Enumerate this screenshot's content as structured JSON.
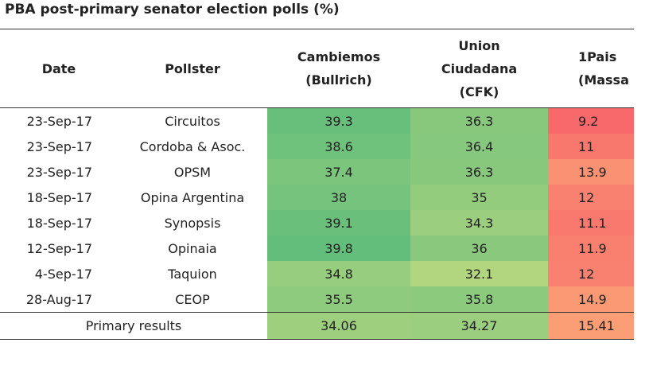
{
  "chart_data": {
    "type": "table",
    "title": "PBA post-primary senator election polls (%)",
    "columns": {
      "date": "Date",
      "pollster": "Pollster",
      "cambiemos": [
        "Cambiemos",
        "(Bullrich)"
      ],
      "union": [
        "Union",
        "Ciudadana",
        "(CFK)"
      ],
      "pais": [
        "1Pais",
        "(Massa"
      ]
    },
    "rows": [
      {
        "date": "23-Sep-17",
        "pollster": "Circuitos",
        "cambiemos": "39.3",
        "union": "36.3",
        "pais": "9.2"
      },
      {
        "date": "23-Sep-17",
        "pollster": "Cordoba & Asoc.",
        "cambiemos": "38.6",
        "union": "36.4",
        "pais": "11"
      },
      {
        "date": "23-Sep-17",
        "pollster": "OPSM",
        "cambiemos": "37.4",
        "union": "36.3",
        "pais": "13.9"
      },
      {
        "date": "18-Sep-17",
        "pollster": "Opina Argentina",
        "cambiemos": "38",
        "union": "35",
        "pais": "12"
      },
      {
        "date": "18-Sep-17",
        "pollster": "Synopsis",
        "cambiemos": "39.1",
        "union": "34.3",
        "pais": "11.1"
      },
      {
        "date": "12-Sep-17",
        "pollster": "Opinaia",
        "cambiemos": "39.8",
        "union": "36",
        "pais": "11.9"
      },
      {
        "date": "4-Sep-17",
        "pollster": "Taquion",
        "cambiemos": "34.8",
        "union": "32.1",
        "pais": "12"
      },
      {
        "date": "28-Aug-17",
        "pollster": "CEOP",
        "cambiemos": "35.5",
        "union": "35.8",
        "pais": "14.9"
      }
    ],
    "primary": {
      "label": "Primary results",
      "cambiemos": "34.06",
      "union": "34.27",
      "pais": "15.41"
    },
    "color_scale": {
      "low": "#f8696b",
      "mid": "#ffeb84",
      "high": "#63be7b"
    }
  }
}
